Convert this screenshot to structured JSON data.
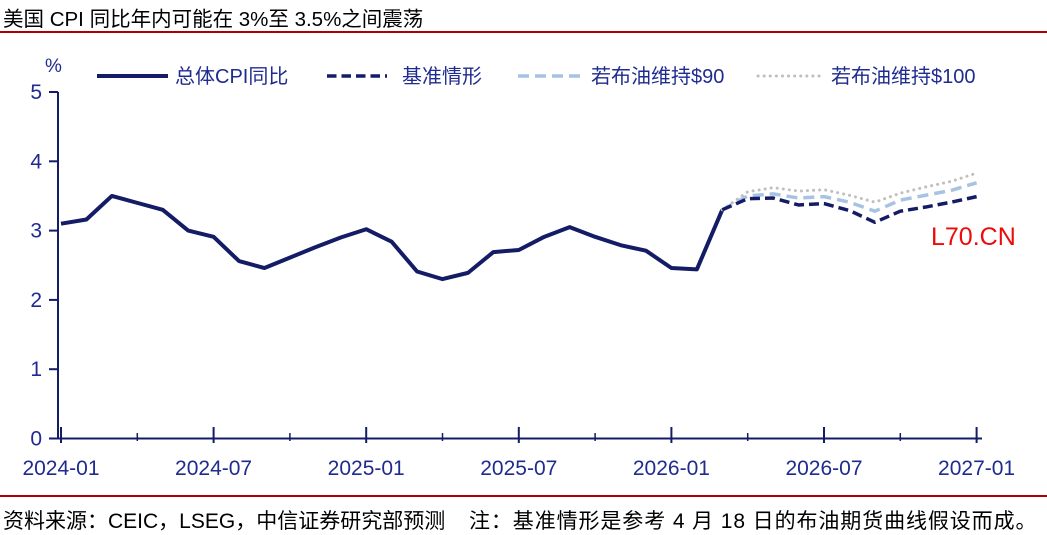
{
  "title": "美国 CPI 同比年内可能在 3%至 3.5%之间震荡",
  "watermark": "L70.CN",
  "footer": {
    "source": "资料来源：CEIC，LSEG，中信证券研究部预测",
    "note": "注：基准情形是参考 4 月 18 日的布油期货曲线假设而成。"
  },
  "colors": {
    "navy_line": "#141c66",
    "navy_text": "#1f2b8f",
    "light_blue": "#a6c3e3",
    "gray_dotted": "#bfbfbf",
    "red_rule": "#ae0000",
    "watermark_red": "#ee0a0a"
  },
  "chart_data": {
    "type": "line",
    "title": "",
    "ylabel": "%",
    "ylim": [
      0,
      5
    ],
    "yticks": [
      "0",
      "1",
      "2",
      "3",
      "4",
      "5"
    ],
    "x_axis": "months, 2024-01 to 2027-01",
    "xtick_major_months": [
      0,
      6,
      12,
      18,
      24,
      30,
      36
    ],
    "xtick_major_labels": [
      "2024-01",
      "2024-07",
      "2025-01",
      "2025-07",
      "2026-01",
      "2026-07",
      "2027-01"
    ],
    "xtick_minor_months": [
      3,
      9,
      15,
      21,
      27,
      33
    ],
    "grid": false,
    "legend_position": "top",
    "series": [
      {
        "name": "总体CPI同比",
        "style": "solid",
        "color": "#141c66",
        "start_month": 0,
        "values": [
          3.1,
          3.16,
          3.5,
          3.4,
          3.3,
          3.0,
          2.91,
          2.56,
          2.46,
          2.61,
          2.76,
          2.9,
          3.02,
          2.84,
          2.41,
          2.3,
          2.39,
          2.69,
          2.72,
          2.91,
          3.05,
          2.91,
          2.79,
          2.71,
          2.46,
          2.44,
          3.3
        ]
      },
      {
        "name": "基准情形",
        "style": "dashed",
        "color": "#141c66",
        "start_month": 26,
        "values": [
          3.3,
          3.46,
          3.47,
          3.37,
          3.39,
          3.29,
          3.12,
          3.28,
          3.34,
          3.41,
          3.49
        ]
      },
      {
        "name": "若布油维持$90",
        "style": "dashed",
        "color": "#a6c3e3",
        "start_month": 26,
        "values": [
          3.3,
          3.5,
          3.53,
          3.47,
          3.49,
          3.41,
          3.28,
          3.44,
          3.51,
          3.58,
          3.69
        ]
      },
      {
        "name": "若布油维持$100",
        "style": "dotted",
        "color": "#bfbfbf",
        "start_month": 26,
        "values": [
          3.3,
          3.56,
          3.62,
          3.57,
          3.59,
          3.51,
          3.41,
          3.54,
          3.63,
          3.71,
          3.83
        ]
      }
    ]
  }
}
